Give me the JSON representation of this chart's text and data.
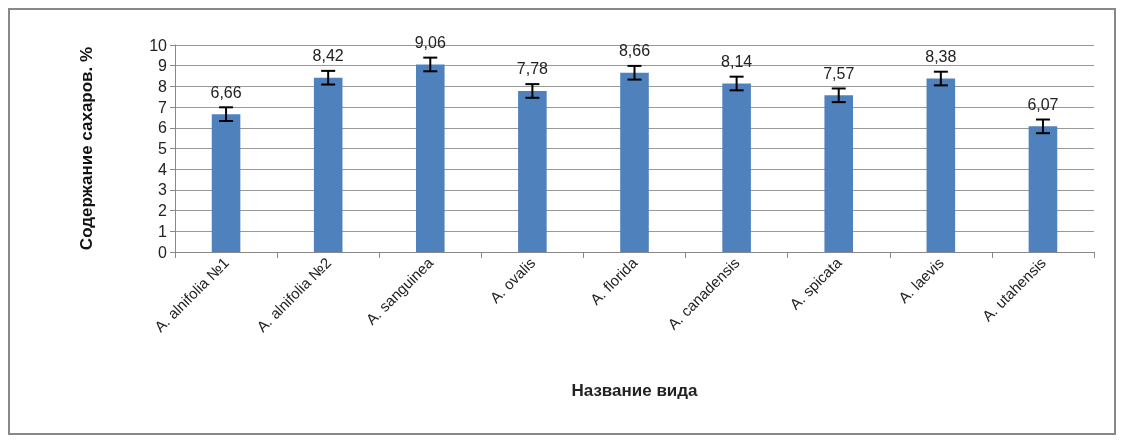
{
  "chart_data": {
    "type": "bar",
    "xlabel": "Название вида",
    "ylabel": "Содержание сахаров. %",
    "categories": [
      "A. alnifolia №1",
      "A. alnifolia №2",
      "A. sanguinea",
      "A. ovalis",
      "A. florida",
      "A. canadensis",
      "A. spicata",
      "A. laevis",
      "A. utahensis"
    ],
    "values": [
      6.66,
      8.42,
      9.06,
      7.78,
      8.66,
      8.14,
      7.57,
      8.38,
      6.07
    ],
    "value_labels": [
      "6,66",
      "8,42",
      "9,06",
      "7,78",
      "8,66",
      "8,14",
      "7,57",
      "8,38",
      "6,07"
    ],
    "errors": [
      0.33,
      0.33,
      0.33,
      0.33,
      0.33,
      0.33,
      0.33,
      0.33,
      0.33
    ],
    "color": "#4f81bd",
    "ylim": [
      0,
      10
    ],
    "yticks": [
      0,
      1,
      2,
      3,
      4,
      5,
      6,
      7,
      8,
      9,
      10
    ],
    "grid": "y"
  }
}
